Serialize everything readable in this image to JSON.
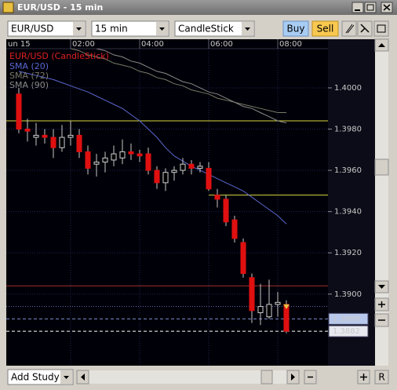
{
  "window": {
    "title": "EUR/USD - 15 min"
  },
  "toolbar": {
    "symbol": "EUR/USD",
    "interval": "15 min",
    "chart_style": "CandleStick",
    "buy": "Buy",
    "sell": "Sell"
  },
  "chart": {
    "legend_title": "EUR/USD (CandleStick)",
    "legend_color": "#e02020",
    "xlim": [
      -1.455,
      35.818
    ],
    "xticks": [
      {
        "value": -2,
        "label": "un 15"
      },
      {
        "value": 6,
        "label": "02:00"
      },
      {
        "value": 14,
        "label": "04:00"
      },
      {
        "value": 22,
        "label": "06:00"
      },
      {
        "value": 30,
        "label": "08:00"
      }
    ],
    "ylim": [
      1.38653,
      1.4019
    ],
    "yticks": [
      {
        "value": 1.4,
        "label": "1.4000"
      },
      {
        "value": 1.398,
        "label": "1.3980"
      },
      {
        "value": 1.396,
        "label": "1.3960"
      },
      {
        "value": 1.394,
        "label": "1.3940"
      },
      {
        "value": 1.392,
        "label": "1.3920"
      },
      {
        "value": 1.39,
        "label": "1.3900"
      }
    ],
    "grid": true,
    "x": [
      0,
      1,
      2,
      3,
      4,
      5,
      6,
      7,
      8,
      9,
      10,
      11,
      12,
      13,
      14,
      15,
      16,
      17,
      18,
      19,
      20,
      21,
      22,
      23,
      24,
      25,
      26,
      27,
      28,
      29,
      30,
      31
    ],
    "candles": {
      "up_color": "#000000",
      "down_color": "#e01010",
      "open": [
        1.3997,
        1.398,
        1.3976,
        1.3977,
        1.3976,
        1.3971,
        1.3976,
        1.3977,
        1.3969,
        1.3963,
        1.3964,
        1.3965,
        1.3966,
        1.3969,
        1.3968,
        1.3968,
        1.396,
        1.3954,
        1.3959,
        1.396,
        1.3963,
        1.3961,
        1.3961,
        1.3948,
        1.3946,
        1.3936,
        1.3925,
        1.3908,
        1.3891,
        1.3889,
        1.3895,
        1.3895
      ],
      "high": [
        1.4,
        1.3985,
        1.3983,
        1.398,
        1.398,
        1.3982,
        1.3984,
        1.398,
        1.3972,
        1.3968,
        1.3969,
        1.3972,
        1.3975,
        1.3973,
        1.397,
        1.3971,
        1.3962,
        1.3961,
        1.3962,
        1.3966,
        1.3965,
        1.3964,
        1.3964,
        1.3951,
        1.3948,
        1.3938,
        1.3927,
        1.391,
        1.3905,
        1.3907,
        1.3901,
        1.3897
      ],
      "low": [
        1.3978,
        1.3974,
        1.3972,
        1.3973,
        1.3966,
        1.3969,
        1.3972,
        1.3966,
        1.3958,
        1.3957,
        1.3959,
        1.3962,
        1.3963,
        1.3965,
        1.3964,
        1.3958,
        1.3951,
        1.395,
        1.3955,
        1.3958,
        1.3958,
        1.3959,
        1.395,
        1.3942,
        1.3933,
        1.3925,
        1.3908,
        1.3886,
        1.3885,
        1.3888,
        1.3889,
        1.3881
      ],
      "close": [
        1.398,
        1.3979,
        1.3977,
        1.3976,
        1.3971,
        1.3976,
        1.3977,
        1.3969,
        1.3961,
        1.3964,
        1.3966,
        1.3968,
        1.3969,
        1.3968,
        1.3967,
        1.396,
        1.3954,
        1.3959,
        1.396,
        1.3963,
        1.3961,
        1.3962,
        1.3951,
        1.3946,
        1.3935,
        1.3927,
        1.391,
        1.3892,
        1.3894,
        1.3895,
        1.3896,
        1.3882
      ]
    },
    "series": [
      {
        "name": "SMA (20)",
        "color": "#5a68d0",
        "values": [
          1.4008,
          1.4007,
          1.4006,
          1.4005,
          1.4004,
          1.40025,
          1.4001,
          1.39995,
          1.3998,
          1.3996,
          1.3994,
          1.3992,
          1.399,
          1.3987,
          1.3984,
          1.398,
          1.3976,
          1.3971,
          1.3967,
          1.39645,
          1.3962,
          1.396,
          1.3958,
          1.3956,
          1.3954,
          1.3952,
          1.395,
          1.3947,
          1.3944,
          1.3941,
          1.3938,
          1.3934
        ]
      },
      {
        "name": "SMA (72)",
        "color": "#7a7a6a",
        "values": [
          null,
          null,
          null,
          null,
          null,
          null,
          1.4019,
          1.4018,
          1.4016,
          1.4015,
          1.4014,
          1.4012,
          1.4011,
          1.401,
          1.4008,
          1.4007,
          1.4005,
          1.4004,
          1.4002,
          1.4001,
          1.3999,
          1.3998,
          1.3997,
          1.3995,
          1.3994,
          1.3993,
          1.3992,
          1.3991,
          1.399,
          1.3989,
          1.3988,
          1.3988
        ]
      },
      {
        "name": "SMA (90)",
        "color": "#8a8a8a",
        "values": [
          null,
          null,
          null,
          null,
          null,
          null,
          null,
          null,
          null,
          1.4019,
          1.4018,
          1.4016,
          1.4015,
          1.4013,
          1.4012,
          1.401,
          1.4008,
          1.4007,
          1.4005,
          1.4003,
          1.4002,
          1.4,
          1.3998,
          1.3997,
          1.3995,
          1.3993,
          1.3991,
          1.399,
          1.3988,
          1.3986,
          1.3984,
          1.3983
        ]
      }
    ],
    "levels": [
      {
        "value": 1.3984,
        "color": "#d8d840"
      },
      {
        "value": 1.3948,
        "color": "#d8d840",
        "start": 22
      },
      {
        "value": 1.3904,
        "color": "#a03030"
      },
      {
        "value": 1.3894,
        "color": "#5868b0",
        "style": "dotted"
      },
      {
        "value": 1.3888,
        "label": "1.3888",
        "color": "#8090d0",
        "style": "dashed"
      },
      {
        "value": 1.3882,
        "label": "1.3882",
        "color": "#ffffff",
        "style": "dashed"
      }
    ]
  },
  "footer": {
    "study": "Add Study",
    "reset": "R"
  }
}
